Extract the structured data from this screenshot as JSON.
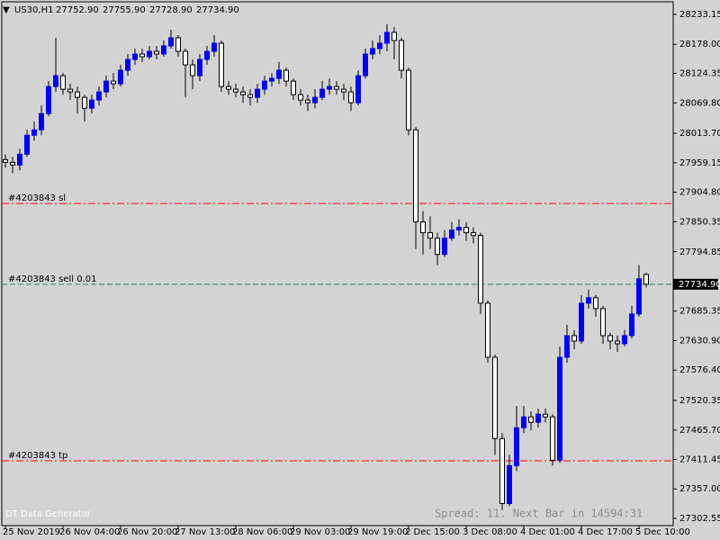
{
  "chart_data": {
    "type": "candlestick",
    "title": "US30,H1",
    "ohlc_labels": [
      "27752.90",
      "27755.90",
      "27728.90",
      "27734.90"
    ],
    "categories": [
      "25 Nov 2019",
      null,
      null,
      null,
      null,
      null,
      null,
      null,
      "26 Nov 04:00",
      null,
      null,
      null,
      null,
      null,
      null,
      null,
      "26 Nov 20:00",
      null,
      null,
      null,
      null,
      null,
      null,
      null,
      "27 Nov 13:00",
      null,
      null,
      null,
      null,
      null,
      null,
      null,
      "28 Nov 06:00",
      null,
      null,
      null,
      null,
      null,
      null,
      null,
      "29 Nov 03:00",
      null,
      null,
      null,
      null,
      null,
      null,
      null,
      "29 Nov 19:00",
      null,
      null,
      null,
      null,
      null,
      null,
      null,
      "2 Dec 15:00",
      null,
      null,
      null,
      null,
      null,
      null,
      null,
      "3 Dec 08:00",
      null,
      null,
      null,
      null,
      null,
      null,
      null,
      "4 Dec 01:00",
      null,
      null,
      null,
      null,
      null,
      null,
      null,
      "4 Dec 17:00",
      null,
      null,
      null,
      null,
      null,
      null,
      null,
      "5 Dec 10:00",
      null
    ],
    "open": [
      27965,
      27960,
      27955,
      27975,
      28010,
      28020,
      28050,
      28100,
      28120,
      28095,
      28090,
      28080,
      28060,
      28075,
      28090,
      28110,
      28105,
      28130,
      28150,
      28160,
      28155,
      28165,
      28160,
      28175,
      28190,
      28165,
      28140,
      28120,
      28150,
      28165,
      28180,
      28100,
      28095,
      28090,
      28085,
      28080,
      28095,
      28110,
      28115,
      28130,
      28110,
      28085,
      28075,
      28070,
      28080,
      28095,
      28100,
      28095,
      28090,
      28070,
      28120,
      28160,
      28170,
      28180,
      28200,
      28185,
      28130,
      28020,
      27850,
      27830,
      27820,
      27790,
      27820,
      27835,
      27840,
      27830,
      27825,
      27700,
      27600,
      27450,
      27330,
      27400,
      27470,
      27490,
      27480,
      27495,
      27490,
      27410,
      27600,
      27640,
      27630,
      27700,
      27710,
      27690,
      27640,
      27630,
      27625,
      27640,
      27680,
      27752.9
    ],
    "high": [
      27975,
      27970,
      27985,
      28020,
      28035,
      28065,
      28110,
      28190,
      28125,
      28105,
      28100,
      28085,
      28085,
      28100,
      28120,
      28125,
      28140,
      28160,
      28170,
      28170,
      28175,
      28175,
      28185,
      28205,
      28195,
      28170,
      28150,
      28160,
      28175,
      28195,
      28185,
      28110,
      28105,
      28100,
      28095,
      28105,
      28120,
      28125,
      28145,
      28135,
      28115,
      28095,
      28085,
      28095,
      28110,
      28115,
      28110,
      28105,
      28100,
      28130,
      28170,
      28185,
      28195,
      28215,
      28210,
      28190,
      28135,
      28025,
      27870,
      27860,
      27830,
      27835,
      27850,
      27855,
      27850,
      27840,
      27830,
      27705,
      27605,
      27460,
      27420,
      27510,
      27510,
      27500,
      27505,
      27505,
      27495,
      27620,
      27660,
      27650,
      27715,
      27725,
      27715,
      27695,
      27645,
      27640,
      27650,
      27695,
      27770,
      27755.9
    ],
    "low": [
      27950,
      27940,
      27945,
      27970,
      28000,
      28010,
      28045,
      28090,
      28085,
      28075,
      28050,
      28035,
      28050,
      28065,
      28080,
      28095,
      28100,
      28120,
      28140,
      28145,
      28150,
      28150,
      28155,
      28170,
      28155,
      28080,
      28095,
      28110,
      28140,
      28155,
      28090,
      28085,
      28080,
      28070,
      28065,
      28070,
      28085,
      28100,
      28105,
      28100,
      28075,
      28065,
      28055,
      28060,
      28075,
      28085,
      28085,
      28075,
      28055,
      28065,
      28115,
      28150,
      28160,
      28165,
      28150,
      28115,
      28010,
      27800,
      27790,
      27800,
      27770,
      27785,
      27815,
      27825,
      27815,
      27810,
      27680,
      27590,
      27420,
      27318,
      27325,
      27390,
      27460,
      27465,
      27470,
      27480,
      27400,
      27405,
      27590,
      27615,
      27625,
      27690,
      27675,
      27625,
      27615,
      27610,
      27620,
      27635,
      27675,
      27728.9
    ],
    "close": [
      27960,
      27955,
      27975,
      28010,
      28020,
      28050,
      28100,
      28120,
      28095,
      28090,
      28080,
      28060,
      28075,
      28090,
      28110,
      28105,
      28130,
      28150,
      28160,
      28155,
      28165,
      28160,
      28175,
      28190,
      28165,
      28140,
      28120,
      28150,
      28165,
      28180,
      28100,
      28095,
      28090,
      28085,
      28080,
      28095,
      28110,
      28115,
      28130,
      28110,
      28085,
      28075,
      28070,
      28080,
      28095,
      28100,
      28095,
      28090,
      28070,
      28120,
      28160,
      28170,
      28180,
      28200,
      28185,
      28130,
      28020,
      27850,
      27830,
      27820,
      27790,
      27820,
      27835,
      27840,
      27830,
      27825,
      27700,
      27600,
      27450,
      27330,
      27400,
      27470,
      27490,
      27480,
      27495,
      27490,
      27410,
      27600,
      27640,
      27630,
      27700,
      27710,
      27690,
      27640,
      27630,
      27625,
      27640,
      27680,
      27745,
      27734.9
    ],
    "up_color": "#0000ff",
    "down_color": "#ffffff",
    "ylim": [
      27289.26,
      28259.74
    ],
    "yticks": [
      28233.15,
      {
        "value": 28178,
        "label": "28178.00"
      },
      28124.35,
      {
        "value": 28069.8,
        "label": "28069.80"
      },
      {
        "value": 28013.7,
        "label": "28013.70"
      },
      27959.15,
      {
        "value": 27904.8,
        "label": "27904.80"
      },
      27850.35,
      27794.85,
      27685.35,
      {
        "value": 27630.9,
        "label": "27630.90"
      },
      {
        "value": 27576.4,
        "label": "27576.40"
      },
      27520.35,
      {
        "value": 27465.7,
        "label": "27465.70"
      },
      27411.45,
      {
        "value": 27357,
        "label": "27357.00"
      },
      27302.55
    ],
    "bid": {
      "value": 27734.9,
      "label": "27734.90"
    },
    "orders": [
      {
        "label": "#4203843 sl",
        "price": 27884,
        "color": "#ff0000"
      },
      {
        "label": "#4203843 sell 0.01",
        "price": 27734.9,
        "color": "#2e8b57"
      },
      {
        "label": "#4203843 tp",
        "price": 27409,
        "color": "#ff0000"
      }
    ],
    "watermark": "DT Data Generator",
    "status": "Spread: 11. Next Bar in 14594:31"
  }
}
